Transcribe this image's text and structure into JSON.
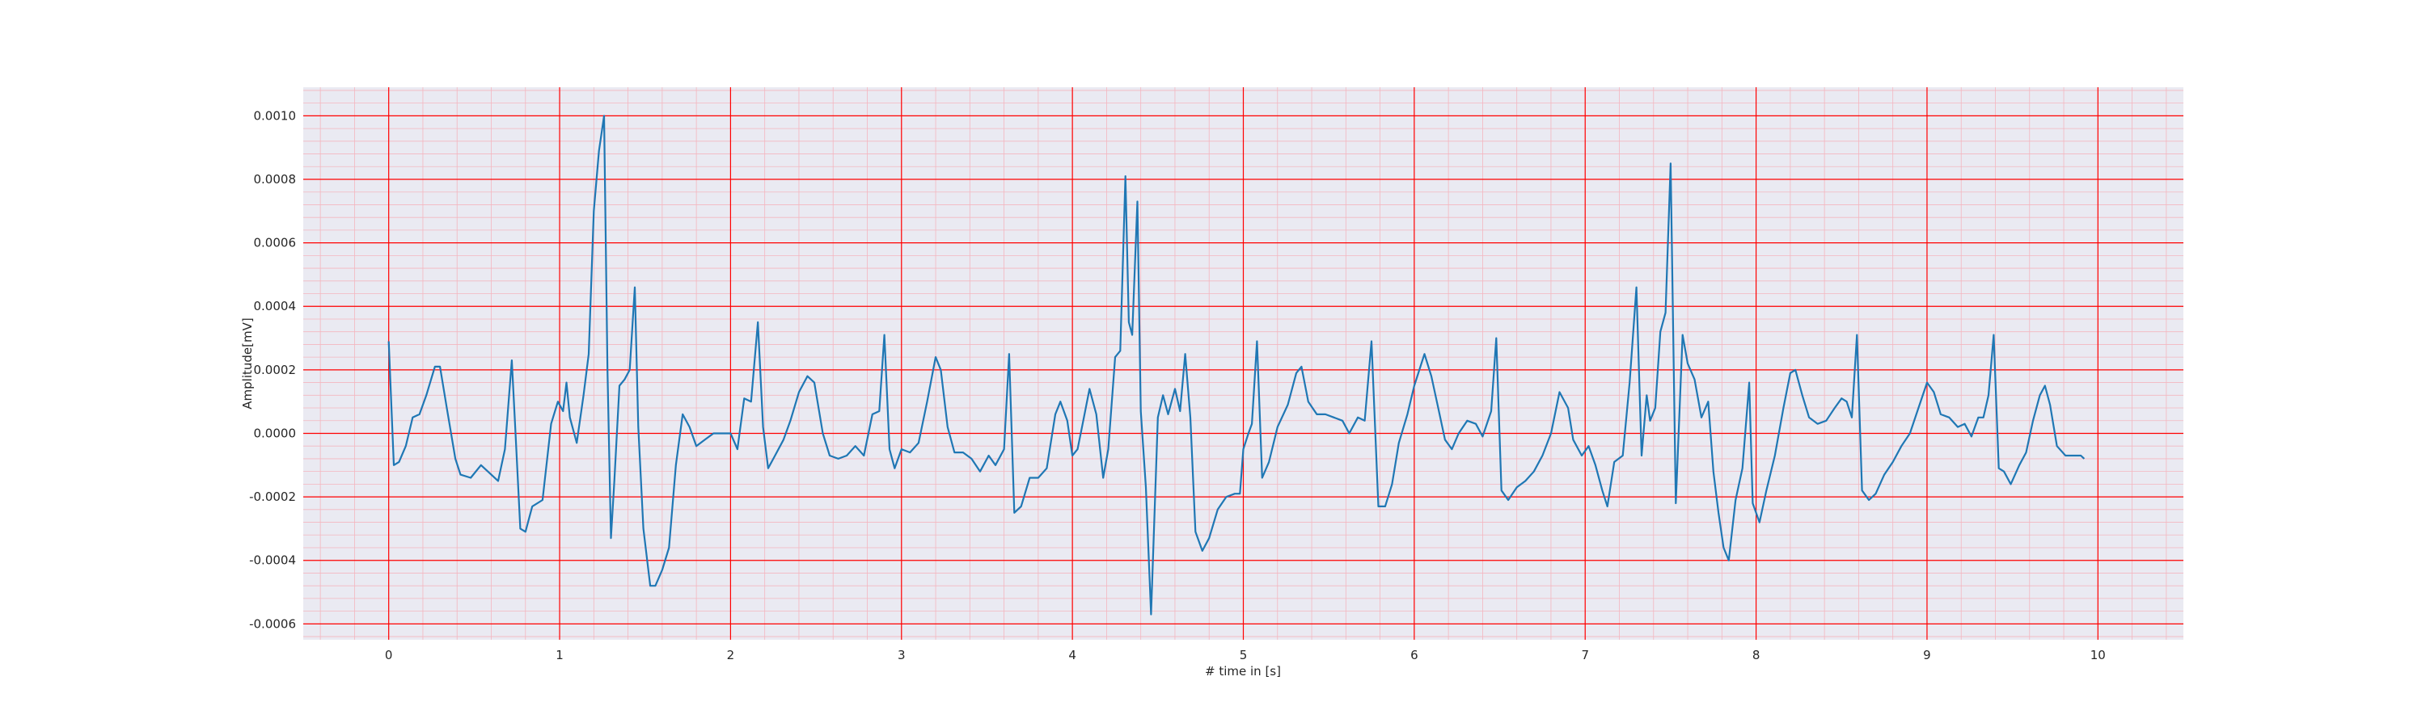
{
  "chart_data": {
    "type": "line",
    "title": "",
    "xlabel": "# time in [s]",
    "ylabel": "Amplitude[mV]",
    "xlim": [
      -0.5,
      10.5
    ],
    "ylim": [
      -0.00065,
      0.00109
    ],
    "xticks": [
      0,
      1,
      2,
      3,
      4,
      5,
      6,
      7,
      8,
      9,
      10
    ],
    "xtick_labels": [
      "0",
      "1",
      "2",
      "3",
      "4",
      "5",
      "6",
      "7",
      "8",
      "9",
      "10"
    ],
    "yticks": [
      -0.0006,
      -0.0004,
      -0.0002,
      0,
      0.0002,
      0.0004,
      0.0006,
      0.0008,
      0.001
    ],
    "ytick_labels": [
      "-0.0006",
      "-0.0004",
      "-0.0002",
      "0.0000",
      "0.0002",
      "0.0004",
      "0.0006",
      "0.0008",
      "0.0010"
    ],
    "grid": true,
    "minor_grid": true,
    "colors": {
      "plot_background": "#eaeaf2",
      "major_grid": "#ff0000",
      "minor_grid": "#f4b6bf",
      "line": "#1f77b4"
    },
    "series": [
      {
        "points": [
          [
            0.0,
            0.00029
          ],
          [
            0.03,
            -0.0001
          ],
          [
            0.06,
            -9e-05
          ],
          [
            0.1,
            -4e-05
          ],
          [
            0.14,
            5e-05
          ],
          [
            0.18,
            6e-05
          ],
          [
            0.22,
            0.00012
          ],
          [
            0.27,
            0.00021
          ],
          [
            0.3,
            0.00021
          ],
          [
            0.34,
            8e-05
          ],
          [
            0.39,
            -8e-05
          ],
          [
            0.42,
            -0.00013
          ],
          [
            0.48,
            -0.00014
          ],
          [
            0.54,
            -0.0001
          ],
          [
            0.6,
            -0.00013
          ],
          [
            0.64,
            -0.00015
          ],
          [
            0.68,
            -5e-05
          ],
          [
            0.72,
            0.00023
          ],
          [
            0.74,
            2e-05
          ],
          [
            0.77,
            -0.0003
          ],
          [
            0.8,
            -0.00031
          ],
          [
            0.84,
            -0.00023
          ],
          [
            0.9,
            -0.00021
          ],
          [
            0.95,
            3e-05
          ],
          [
            0.99,
            0.0001
          ],
          [
            1.02,
            7e-05
          ],
          [
            1.04,
            0.00016
          ],
          [
            1.06,
            5e-05
          ],
          [
            1.1,
            -3e-05
          ],
          [
            1.14,
            0.00012
          ],
          [
            1.17,
            0.00025
          ],
          [
            1.2,
            0.0007
          ],
          [
            1.23,
            0.00089
          ],
          [
            1.26,
            0.001
          ],
          [
            1.28,
            0.0002
          ],
          [
            1.3,
            -0.00033
          ],
          [
            1.32,
            -0.00015
          ],
          [
            1.35,
            0.00015
          ],
          [
            1.38,
            0.00017
          ],
          [
            1.41,
            0.0002
          ],
          [
            1.44,
            0.00046
          ],
          [
            1.46,
            2e-05
          ],
          [
            1.49,
            -0.0003
          ],
          [
            1.53,
            -0.00048
          ],
          [
            1.56,
            -0.00048
          ],
          [
            1.6,
            -0.00043
          ],
          [
            1.64,
            -0.00036
          ],
          [
            1.68,
            -0.0001
          ],
          [
            1.72,
            6e-05
          ],
          [
            1.76,
            2e-05
          ],
          [
            1.8,
            -4e-05
          ],
          [
            1.85,
            -2e-05
          ],
          [
            1.9,
            0.0
          ],
          [
            1.95,
            0.0
          ],
          [
            2.0,
            0.0
          ],
          [
            2.04,
            -5e-05
          ],
          [
            2.08,
            0.00011
          ],
          [
            2.12,
            0.0001
          ],
          [
            2.16,
            0.00035
          ],
          [
            2.19,
            2e-05
          ],
          [
            2.22,
            -0.00011
          ],
          [
            2.26,
            -7e-05
          ],
          [
            2.31,
            -2e-05
          ],
          [
            2.35,
            4e-05
          ],
          [
            2.4,
            0.00013
          ],
          [
            2.45,
            0.00018
          ],
          [
            2.49,
            0.00016
          ],
          [
            2.54,
            0.0
          ],
          [
            2.58,
            -7e-05
          ],
          [
            2.63,
            -8e-05
          ],
          [
            2.68,
            -7e-05
          ],
          [
            2.73,
            -4e-05
          ],
          [
            2.78,
            -7e-05
          ],
          [
            2.83,
            6e-05
          ],
          [
            2.87,
            7e-05
          ],
          [
            2.9,
            0.00031
          ],
          [
            2.93,
            -5e-05
          ],
          [
            2.96,
            -0.00011
          ],
          [
            3.0,
            -5e-05
          ],
          [
            3.05,
            -6e-05
          ],
          [
            3.1,
            -3e-05
          ],
          [
            3.15,
            0.0001
          ],
          [
            3.2,
            0.00024
          ],
          [
            3.23,
            0.0002
          ],
          [
            3.27,
            2e-05
          ],
          [
            3.31,
            -6e-05
          ],
          [
            3.36,
            -6e-05
          ],
          [
            3.41,
            -8e-05
          ],
          [
            3.46,
            -0.00012
          ],
          [
            3.51,
            -7e-05
          ],
          [
            3.55,
            -0.0001
          ],
          [
            3.6,
            -5e-05
          ],
          [
            3.63,
            0.00025
          ],
          [
            3.66,
            -0.00025
          ],
          [
            3.7,
            -0.00023
          ],
          [
            3.75,
            -0.00014
          ],
          [
            3.8,
            -0.00014
          ],
          [
            3.85,
            -0.00011
          ],
          [
            3.9,
            6e-05
          ],
          [
            3.93,
            0.0001
          ],
          [
            3.97,
            4e-05
          ],
          [
            4.0,
            -7e-05
          ],
          [
            4.03,
            -5e-05
          ],
          [
            4.06,
            3e-05
          ],
          [
            4.1,
            0.00014
          ],
          [
            4.14,
            6e-05
          ],
          [
            4.18,
            -0.00014
          ],
          [
            4.21,
            -5e-05
          ],
          [
            4.25,
            0.00024
          ],
          [
            4.28,
            0.00026
          ],
          [
            4.31,
            0.00081
          ],
          [
            4.33,
            0.00035
          ],
          [
            4.35,
            0.00031
          ],
          [
            4.38,
            0.00073
          ],
          [
            4.4,
            7e-05
          ],
          [
            4.43,
            -0.00017
          ],
          [
            4.46,
            -0.00057
          ],
          [
            4.5,
            5e-05
          ],
          [
            4.53,
            0.00012
          ],
          [
            4.56,
            6e-05
          ],
          [
            4.6,
            0.00014
          ],
          [
            4.63,
            7e-05
          ],
          [
            4.66,
            0.00025
          ],
          [
            4.69,
            5e-05
          ],
          [
            4.72,
            -0.00031
          ],
          [
            4.76,
            -0.00037
          ],
          [
            4.8,
            -0.00033
          ],
          [
            4.85,
            -0.00024
          ],
          [
            4.9,
            -0.0002
          ],
          [
            4.95,
            -0.00019
          ],
          [
            4.98,
            -0.00019
          ],
          [
            5.0,
            -5e-05
          ],
          [
            5.03,
            0.0
          ],
          [
            5.05,
            3e-05
          ],
          [
            5.08,
            0.00029
          ],
          [
            5.11,
            -0.00014
          ],
          [
            5.15,
            -9e-05
          ],
          [
            5.2,
            2e-05
          ],
          [
            5.26,
            9e-05
          ],
          [
            5.31,
            0.00019
          ],
          [
            5.34,
            0.00021
          ],
          [
            5.38,
            0.0001
          ],
          [
            5.43,
            6e-05
          ],
          [
            5.48,
            6e-05
          ],
          [
            5.53,
            5e-05
          ],
          [
            5.58,
            4e-05
          ],
          [
            5.62,
            0.0
          ],
          [
            5.67,
            5e-05
          ],
          [
            5.71,
            4e-05
          ],
          [
            5.75,
            0.00029
          ],
          [
            5.79,
            -0.00023
          ],
          [
            5.83,
            -0.00023
          ],
          [
            5.87,
            -0.00016
          ],
          [
            5.91,
            -3e-05
          ],
          [
            5.96,
            6e-05
          ],
          [
            6.0,
            0.00015
          ],
          [
            6.06,
            0.00025
          ],
          [
            6.1,
            0.00018
          ],
          [
            6.14,
            8e-05
          ],
          [
            6.18,
            -2e-05
          ],
          [
            6.22,
            -5e-05
          ],
          [
            6.26,
            0.0
          ],
          [
            6.31,
            4e-05
          ],
          [
            6.36,
            3e-05
          ],
          [
            6.4,
            -1e-05
          ],
          [
            6.45,
            7e-05
          ],
          [
            6.48,
            0.0003
          ],
          [
            6.51,
            -0.00018
          ],
          [
            6.55,
            -0.00021
          ],
          [
            6.6,
            -0.00017
          ],
          [
            6.65,
            -0.00015
          ],
          [
            6.7,
            -0.00012
          ],
          [
            6.75,
            -7e-05
          ],
          [
            6.8,
            0.0
          ],
          [
            6.85,
            0.00013
          ],
          [
            6.9,
            8e-05
          ],
          [
            6.93,
            -2e-05
          ],
          [
            6.98,
            -7e-05
          ],
          [
            7.02,
            -4e-05
          ],
          [
            7.06,
            -0.0001
          ],
          [
            7.1,
            -0.00018
          ],
          [
            7.13,
            -0.00023
          ],
          [
            7.17,
            -9e-05
          ],
          [
            7.22,
            -7e-05
          ],
          [
            7.26,
            0.00016
          ],
          [
            7.3,
            0.00046
          ],
          [
            7.33,
            -7e-05
          ],
          [
            7.36,
            0.00012
          ],
          [
            7.38,
            4e-05
          ],
          [
            7.41,
            8e-05
          ],
          [
            7.44,
            0.00032
          ],
          [
            7.47,
            0.00038
          ],
          [
            7.5,
            0.00085
          ],
          [
            7.53,
            -0.00022
          ],
          [
            7.57,
            0.00031
          ],
          [
            7.6,
            0.00022
          ],
          [
            7.64,
            0.00017
          ],
          [
            7.68,
            5e-05
          ],
          [
            7.72,
            0.0001
          ],
          [
            7.75,
            -0.00012
          ],
          [
            7.78,
            -0.00025
          ],
          [
            7.81,
            -0.00036
          ],
          [
            7.84,
            -0.0004
          ],
          [
            7.88,
            -0.00021
          ],
          [
            7.92,
            -0.00011
          ],
          [
            7.96,
            0.00016
          ],
          [
            7.98,
            -0.00022
          ],
          [
            8.02,
            -0.00028
          ],
          [
            8.06,
            -0.00018
          ],
          [
            8.11,
            -7e-05
          ],
          [
            8.16,
            8e-05
          ],
          [
            8.2,
            0.00019
          ],
          [
            8.23,
            0.0002
          ],
          [
            8.27,
            0.00012
          ],
          [
            8.31,
            5e-05
          ],
          [
            8.36,
            3e-05
          ],
          [
            8.41,
            4e-05
          ],
          [
            8.46,
            8e-05
          ],
          [
            8.5,
            0.00011
          ],
          [
            8.53,
            0.0001
          ],
          [
            8.56,
            5e-05
          ],
          [
            8.59,
            0.00031
          ],
          [
            8.62,
            -0.00018
          ],
          [
            8.66,
            -0.00021
          ],
          [
            8.7,
            -0.00019
          ],
          [
            8.75,
            -0.00013
          ],
          [
            8.8,
            -9e-05
          ],
          [
            8.85,
            -4e-05
          ],
          [
            8.9,
            0.0
          ],
          [
            8.95,
            8e-05
          ],
          [
            9.0,
            0.00016
          ],
          [
            9.04,
            0.00013
          ],
          [
            9.08,
            6e-05
          ],
          [
            9.13,
            5e-05
          ],
          [
            9.18,
            2e-05
          ],
          [
            9.22,
            3e-05
          ],
          [
            9.26,
            -1e-05
          ],
          [
            9.3,
            5e-05
          ],
          [
            9.33,
            5e-05
          ],
          [
            9.36,
            0.00012
          ],
          [
            9.39,
            0.00031
          ],
          [
            9.42,
            -0.00011
          ],
          [
            9.45,
            -0.00012
          ],
          [
            9.49,
            -0.00016
          ],
          [
            9.54,
            -0.0001
          ],
          [
            9.58,
            -6e-05
          ],
          [
            9.62,
            4e-05
          ],
          [
            9.66,
            0.00012
          ],
          [
            9.69,
            0.00015
          ],
          [
            9.72,
            9e-05
          ],
          [
            9.76,
            -4e-05
          ],
          [
            9.81,
            -7e-05
          ],
          [
            9.86,
            -7e-05
          ],
          [
            9.9,
            -7e-05
          ],
          [
            9.92,
            -8e-05
          ]
        ]
      }
    ]
  }
}
